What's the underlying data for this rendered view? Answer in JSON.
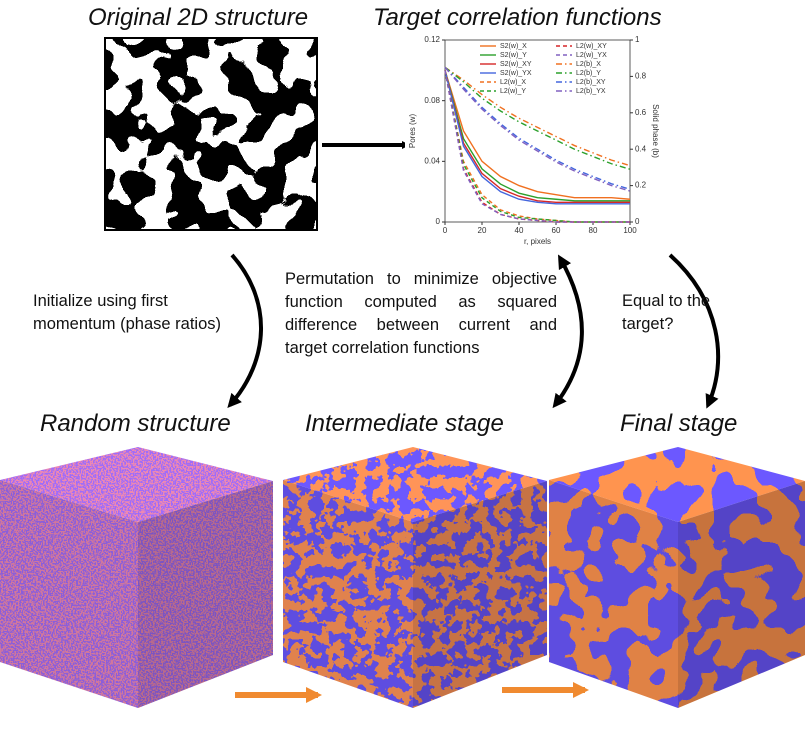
{
  "titles": {
    "original": "Original 2D structure",
    "target": "Target correlation functions",
    "random": "Random structure",
    "intermediate": "Intermediate stage",
    "final": "Final stage"
  },
  "notes": {
    "initialize": "Initialize using first momentum (phase ratios)",
    "permutation": "Permutation to minimize objective function computed as squared difference between current and target correlation functions",
    "equal": "Equal to the target?"
  },
  "chart_data": {
    "type": "line",
    "xlabel": "r, pixels",
    "ylabel": "Pores (w)",
    "y2label": "Solid phase (b)",
    "x": [
      0,
      10,
      20,
      30,
      40,
      50,
      60,
      70,
      80,
      90,
      100
    ],
    "xlim": [
      0,
      100
    ],
    "xticks": [
      0,
      20,
      40,
      60,
      80,
      100
    ],
    "ylim": [
      0,
      0.12
    ],
    "yticks": [
      0,
      0.04,
      0.08,
      0.12
    ],
    "y2lim": [
      0,
      1
    ],
    "y2ticks": [
      0,
      0.2,
      0.4,
      0.6,
      0.8,
      1
    ],
    "legend": "upper right",
    "series": [
      {
        "name": "S2(w)_X",
        "color": "#f07020",
        "dash": "solid",
        "values": [
          0.1,
          0.06,
          0.04,
          0.03,
          0.024,
          0.02,
          0.018,
          0.016,
          0.016,
          0.016,
          0.015
        ]
      },
      {
        "name": "S2(w)_Y",
        "color": "#2ca02c",
        "dash": "solid",
        "values": [
          0.1,
          0.055,
          0.035,
          0.025,
          0.019,
          0.016,
          0.015,
          0.014,
          0.014,
          0.014,
          0.014
        ]
      },
      {
        "name": "S2(w)_XY",
        "color": "#d62728",
        "dash": "solid",
        "values": [
          0.1,
          0.052,
          0.032,
          0.022,
          0.017,
          0.014,
          0.013,
          0.013,
          0.013,
          0.013,
          0.013
        ]
      },
      {
        "name": "S2(w)_YX",
        "color": "#4466dd",
        "dash": "solid",
        "values": [
          0.1,
          0.05,
          0.03,
          0.02,
          0.015,
          0.013,
          0.012,
          0.012,
          0.012,
          0.012,
          0.012
        ]
      },
      {
        "name": "L2(w)_X",
        "color": "#f07020",
        "dash": "dash",
        "values": [
          0.1,
          0.04,
          0.018,
          0.008,
          0.004,
          0.002,
          0.001,
          0,
          0,
          0,
          0
        ]
      },
      {
        "name": "L2(w)_Y",
        "color": "#2ca02c",
        "dash": "dash",
        "values": [
          0.1,
          0.038,
          0.016,
          0.007,
          0.003,
          0.002,
          0.001,
          0,
          0,
          0,
          0
        ]
      },
      {
        "name": "L2(w)_XY",
        "color": "#d62728",
        "dash": "dash",
        "values": [
          0.1,
          0.035,
          0.013,
          0.005,
          0.002,
          0.001,
          0,
          0,
          0,
          0,
          0
        ]
      },
      {
        "name": "L2(w)_YX",
        "color": "#8060c0",
        "dash": "dash",
        "values": [
          0.1,
          0.034,
          0.012,
          0.005,
          0.002,
          0.001,
          0,
          0,
          0,
          0,
          0
        ]
      },
      {
        "name": "L2(b)_X",
        "color": "#f07020",
        "dash": "dashdot",
        "axis": "y2",
        "values": [
          0.85,
          0.78,
          0.7,
          0.63,
          0.57,
          0.52,
          0.47,
          0.42,
          0.38,
          0.34,
          0.31
        ]
      },
      {
        "name": "L2(b)_Y",
        "color": "#2ca02c",
        "dash": "dashdot",
        "axis": "y2",
        "values": [
          0.85,
          0.77,
          0.68,
          0.61,
          0.55,
          0.5,
          0.45,
          0.4,
          0.36,
          0.32,
          0.29
        ]
      },
      {
        "name": "L2(b)_XY",
        "color": "#4466dd",
        "dash": "dashdot",
        "axis": "y2",
        "values": [
          0.85,
          0.74,
          0.63,
          0.54,
          0.46,
          0.4,
          0.34,
          0.29,
          0.25,
          0.21,
          0.18
        ]
      },
      {
        "name": "L2(b)_YX",
        "color": "#8060c0",
        "dash": "dashdot",
        "axis": "y2",
        "values": [
          0.85,
          0.73,
          0.62,
          0.53,
          0.45,
          0.39,
          0.33,
          0.28,
          0.24,
          0.2,
          0.17
        ]
      }
    ]
  }
}
